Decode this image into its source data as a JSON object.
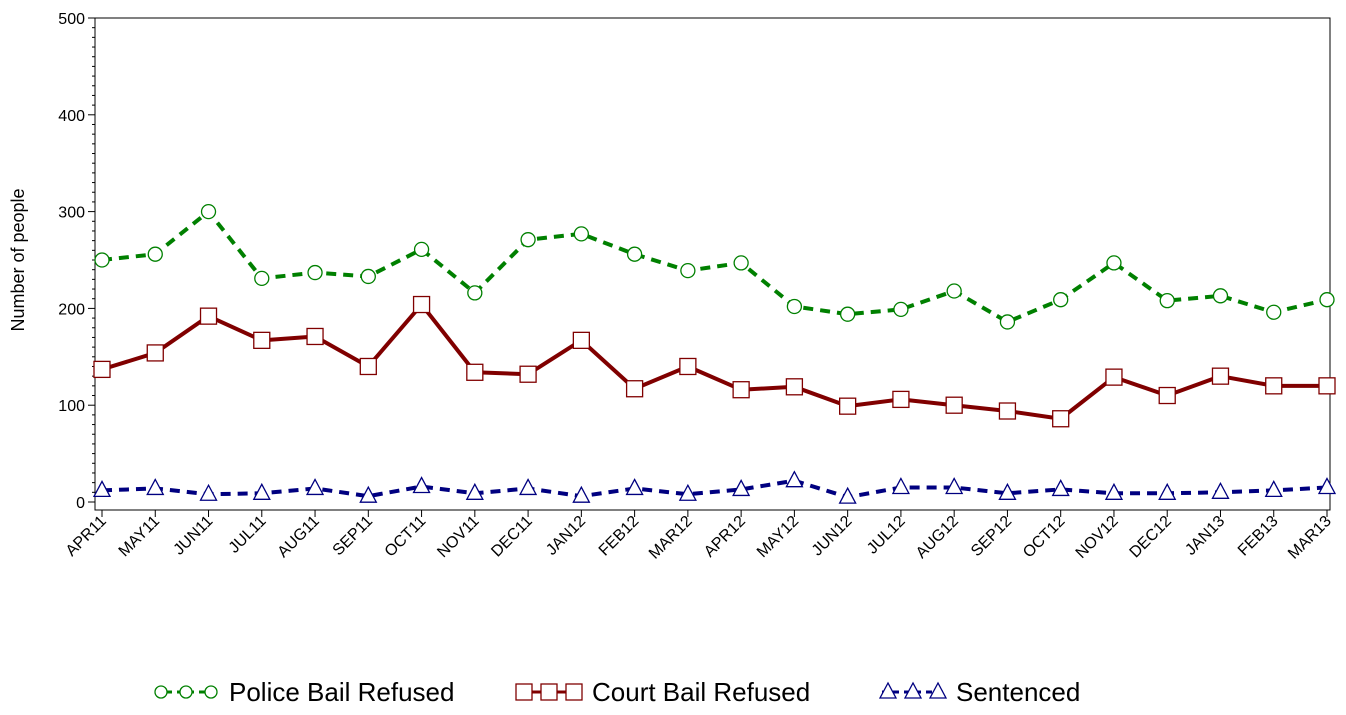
{
  "chart_data": {
    "type": "line",
    "title": "",
    "xlabel": "",
    "ylabel": "Number of people",
    "ylim": [
      0,
      500
    ],
    "yticks": [
      0,
      100,
      200,
      300,
      400,
      500
    ],
    "categories": [
      "APR11",
      "MAY11",
      "JUN11",
      "JUL11",
      "AUG11",
      "SEP11",
      "OCT11",
      "NOV11",
      "DEC11",
      "JAN12",
      "FEB12",
      "MAR12",
      "APR12",
      "MAY12",
      "JUN12",
      "JUL12",
      "AUG12",
      "SEP12",
      "OCT12",
      "NOV12",
      "DEC12",
      "JAN13",
      "FEB13",
      "MAR13"
    ],
    "grid": false,
    "legend_position": "bottom",
    "series": [
      {
        "name": "Police Bail Refused",
        "color": "#008000",
        "line_style": "dashed",
        "marker": "circle",
        "values": [
          250,
          256,
          300,
          231,
          237,
          233,
          261,
          216,
          271,
          277,
          256,
          239,
          247,
          202,
          194,
          199,
          218,
          186,
          209,
          247,
          208,
          213,
          196,
          209
        ]
      },
      {
        "name": "Court Bail Refused",
        "color": "#800000",
        "line_style": "solid",
        "marker": "square",
        "values": [
          137,
          154,
          192,
          167,
          171,
          140,
          204,
          134,
          132,
          167,
          117,
          140,
          116,
          119,
          99,
          106,
          100,
          94,
          86,
          129,
          110,
          130,
          120,
          120
        ]
      },
      {
        "name": "Sentenced",
        "color": "#000080",
        "line_style": "dashed",
        "marker": "triangle",
        "values": [
          12,
          14,
          8,
          9,
          14,
          6,
          16,
          9,
          14,
          6,
          14,
          8,
          13,
          22,
          5,
          15,
          15,
          9,
          13,
          9,
          9,
          10,
          12,
          15
        ]
      }
    ]
  }
}
